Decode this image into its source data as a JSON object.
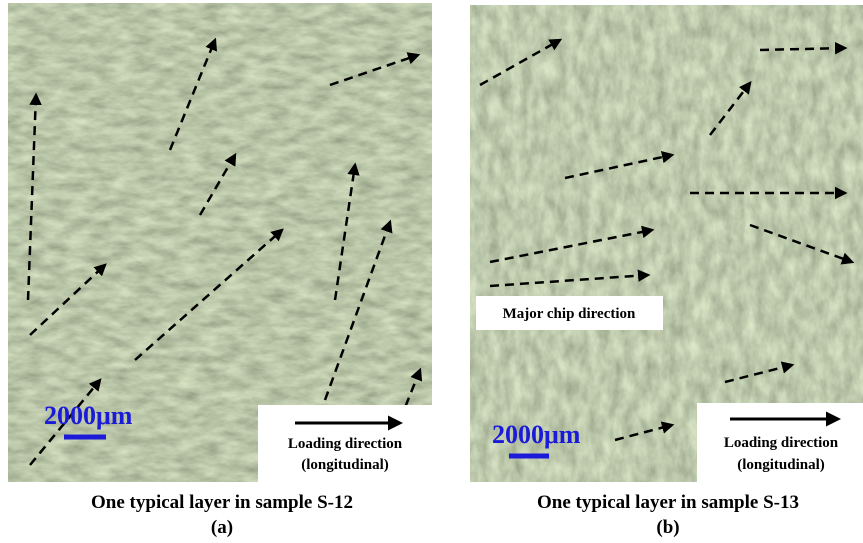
{
  "panels": [
    {
      "scale_label": "2000μm",
      "loading_label": "Loading direction",
      "loading_sub": "(longitudinal)",
      "caption": "One typical layer in sample S-12",
      "letter": "(a)"
    },
    {
      "scale_label": "2000μm",
      "loading_label": "Loading direction",
      "loading_sub": "(longitudinal)",
      "caption": "One typical layer in sample S-13",
      "letter": "(b)",
      "annotation": "Major chip direction"
    }
  ]
}
